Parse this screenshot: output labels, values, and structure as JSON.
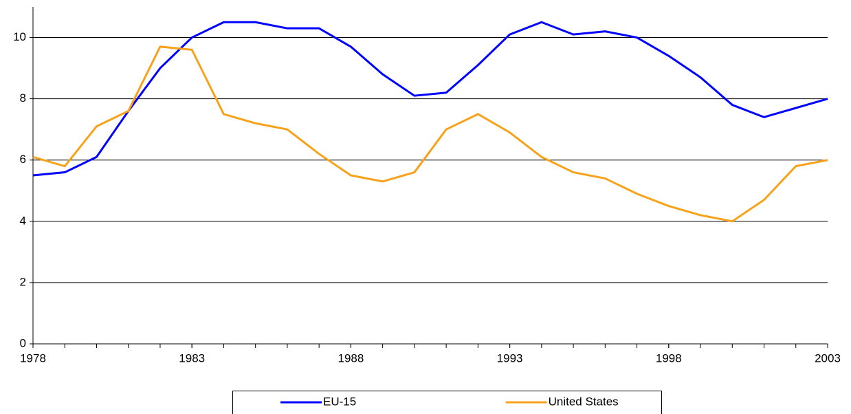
{
  "chart_data": {
    "type": "line",
    "x": [
      1978,
      1979,
      1980,
      1981,
      1982,
      1983,
      1984,
      1985,
      1986,
      1987,
      1988,
      1989,
      1990,
      1991,
      1992,
      1993,
      1994,
      1995,
      1996,
      1997,
      1998,
      1999,
      2000,
      2001,
      2002,
      2003
    ],
    "series": [
      {
        "name": "EU-15",
        "color": "#0000ff",
        "values": [
          5.5,
          5.6,
          6.1,
          7.6,
          9.0,
          10.0,
          10.5,
          10.5,
          10.3,
          10.3,
          9.7,
          8.8,
          8.1,
          8.2,
          9.1,
          10.1,
          10.5,
          10.1,
          10.2,
          10.0,
          9.4,
          8.7,
          7.8,
          7.4,
          7.7,
          8.0
        ]
      },
      {
        "name": "United States",
        "color": "#f7a21b",
        "values": [
          6.1,
          5.8,
          7.1,
          7.6,
          9.7,
          9.6,
          7.5,
          7.2,
          7.0,
          6.2,
          5.5,
          5.3,
          5.6,
          7.0,
          7.5,
          6.9,
          6.1,
          5.6,
          5.4,
          4.9,
          4.5,
          4.2,
          4.0,
          4.7,
          5.8,
          6.0
        ]
      }
    ],
    "xlim": [
      1978,
      2003
    ],
    "xticks": [
      1978,
      1983,
      1988,
      1993,
      1998,
      2003
    ],
    "ylim": [
      0,
      11
    ],
    "yticks": [
      0,
      2,
      4,
      6,
      8,
      10
    ],
    "grid": true,
    "legend": "bottom"
  }
}
